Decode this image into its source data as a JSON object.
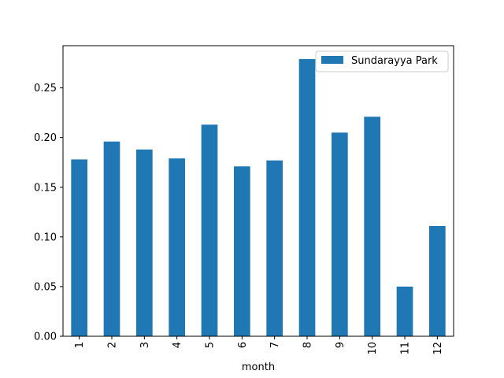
{
  "chart_data": {
    "type": "bar",
    "title": "",
    "xlabel": "month",
    "ylabel": "",
    "categories": [
      "1",
      "2",
      "3",
      "4",
      "5",
      "6",
      "7",
      "8",
      "9",
      "10",
      "11",
      "12"
    ],
    "series": [
      {
        "name": "Sundarayya Park",
        "color": "#1f77b4",
        "values": [
          0.178,
          0.196,
          0.188,
          0.179,
          0.213,
          0.171,
          0.177,
          0.279,
          0.205,
          0.221,
          0.05,
          0.111
        ]
      }
    ],
    "ylim": [
      0,
      0.2925
    ],
    "yticks": [
      0.0,
      0.05,
      0.1,
      0.15,
      0.2,
      0.25
    ],
    "ytick_labels": [
      "0.00",
      "0.05",
      "0.10",
      "0.15",
      "0.20",
      "0.25"
    ],
    "grid": false,
    "legend_position": "upper right"
  }
}
